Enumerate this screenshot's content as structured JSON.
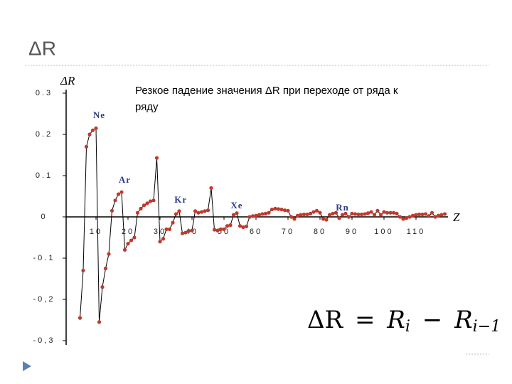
{
  "slide_title": "ΔR",
  "chart_data": {
    "type": "line",
    "ylabel": "ΔR",
    "xlabel": "Z",
    "annotation_lines": [
      "Резкое падение значения ΔR при переходе от ряда к",
      "ряду"
    ],
    "labels": [
      {
        "text": "Ne",
        "x": 11,
        "y": 0.245
      },
      {
        "text": "Ar",
        "x": 19,
        "y": 0.088
      },
      {
        "text": "Kr",
        "x": 36.5,
        "y": 0.04
      },
      {
        "text": "Xe",
        "x": 54,
        "y": 0.026
      },
      {
        "text": "Rn",
        "x": 87,
        "y": 0.021
      }
    ],
    "xlim": [
      0,
      120
    ],
    "xticks": [
      10,
      20,
      30,
      40,
      50,
      60,
      70,
      80,
      90,
      100,
      110
    ],
    "ylim": [
      -0.3,
      0.3
    ],
    "yticks": [
      {
        "value": -0.3,
        "label": "-0,3"
      },
      {
        "value": -0.2,
        "label": "-0,2"
      },
      -0.1,
      0,
      0.1,
      0.2,
      0.3
    ],
    "line_color": "#000000",
    "marker_color": "#c0392b",
    "x": [
      5,
      6,
      7,
      8,
      9,
      10,
      11,
      12,
      13,
      14,
      15,
      16,
      17,
      18,
      19,
      20,
      21,
      22,
      23,
      24,
      25,
      26,
      27,
      28,
      29,
      30,
      31,
      32,
      33,
      34,
      35,
      36,
      37,
      38,
      39,
      40,
      41,
      42,
      43,
      44,
      45,
      46,
      47,
      48,
      49,
      50,
      51,
      52,
      53,
      54,
      55,
      56,
      57,
      58,
      59,
      60,
      61,
      62,
      63,
      64,
      65,
      66,
      67,
      68,
      69,
      70,
      71,
      72,
      73,
      74,
      75,
      76,
      77,
      78,
      79,
      80,
      81,
      82,
      83,
      84,
      85,
      86,
      87,
      88,
      89,
      90,
      91,
      92,
      93,
      94,
      95,
      96,
      97,
      98,
      99,
      100,
      101,
      102,
      103,
      104,
      105,
      106,
      107,
      108,
      109,
      110,
      111,
      112,
      113,
      114,
      115,
      116,
      117,
      118,
      119
    ],
    "values": [
      -0.245,
      -0.13,
      0.17,
      0.2,
      0.21,
      0.215,
      -0.255,
      -0.17,
      -0.125,
      -0.09,
      0.015,
      0.04,
      0.055,
      0.06,
      -0.08,
      -0.065,
      -0.057,
      -0.05,
      0.01,
      0.02,
      0.028,
      0.033,
      0.038,
      0.04,
      0.143,
      -0.06,
      -0.053,
      -0.03,
      -0.03,
      -0.014,
      0.007,
      0.014,
      -0.04,
      -0.038,
      -0.034,
      -0.033,
      0.014,
      0.01,
      0.012,
      0.014,
      0.016,
      0.07,
      -0.031,
      -0.033,
      -0.03,
      -0.03,
      -0.022,
      -0.02,
      0.005,
      0.009,
      -0.022,
      -0.025,
      -0.023,
      0.0,
      0.002,
      0.003,
      0.005,
      0.007,
      0.008,
      0.01,
      0.018,
      0.02,
      0.019,
      0.018,
      0.016,
      0.015,
      0.0,
      -0.005,
      0.003,
      0.005,
      0.006,
      0.006,
      0.008,
      0.012,
      0.015,
      0.01,
      -0.005,
      -0.007,
      0.005,
      0.008,
      0.01,
      -0.003,
      0.005,
      0.008,
      0.0,
      0.008,
      0.007,
      0.006,
      0.006,
      0.007,
      0.009,
      0.012,
      0.005,
      0.015,
      0.005,
      0.012,
      0.01,
      0.01,
      0.01,
      0.008,
      0.0,
      -0.005,
      -0.003,
      0.0,
      0.003,
      0.005,
      0.006,
      0.006,
      0.007,
      0.002,
      0.01,
      0.0,
      0.003,
      0.005,
      0.007
    ]
  },
  "formula": {
    "lhs": "ΔR",
    "eq": "=",
    "r1": "R",
    "s1": "i",
    "op": "−",
    "r2": "R",
    "s2": "i−1"
  }
}
